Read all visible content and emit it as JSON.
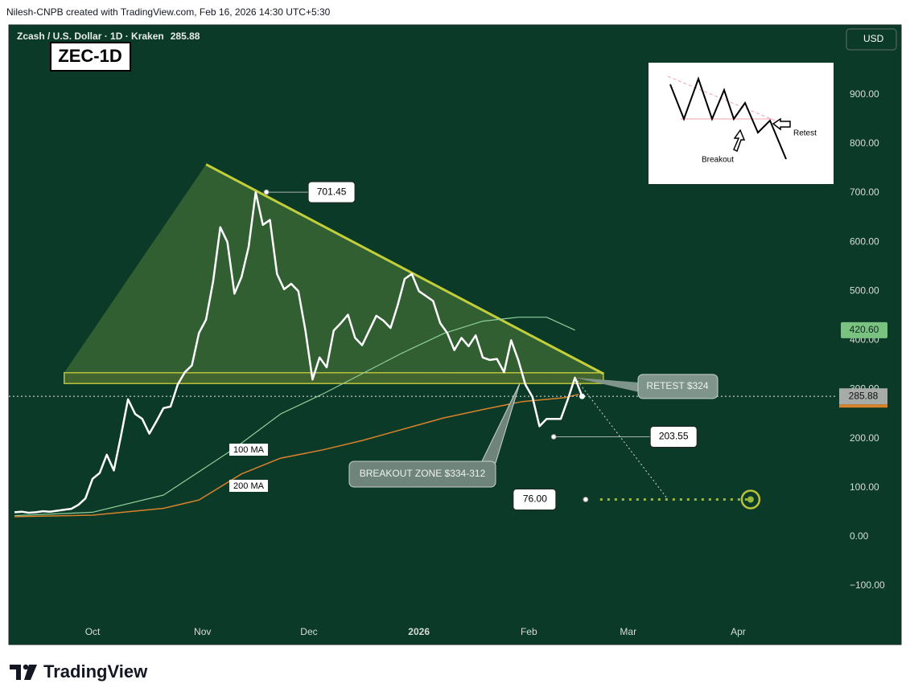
{
  "header": {
    "credit": "Nilesh-CNPB created with TradingView.com, Feb 16, 2026 14:30 UTC+5:30"
  },
  "footer": {
    "brand": "TradingView"
  },
  "inset": {
    "retest": "Retest",
    "breakout": "Breakout"
  },
  "chart_data": {
    "type": "line",
    "title": "Zcash / U.S. Dollar · 1D · Kraken",
    "badge": "ZEC-1D",
    "currency": "USD",
    "grid": false,
    "xlim": [
      -23.6,
      209.8
    ],
    "ylim": [
      -167,
      1042
    ],
    "xticks": [
      {
        "value": 0,
        "label": "Oct"
      },
      {
        "value": 31,
        "label": "Nov"
      },
      {
        "value": 61,
        "label": "Dec"
      },
      {
        "value": 92,
        "label": "2026"
      },
      {
        "value": 123,
        "label": "Feb"
      },
      {
        "value": 151,
        "label": "Mar"
      },
      {
        "value": 182,
        "label": "Apr"
      }
    ],
    "yticks": [
      {
        "value": 900,
        "label": "900.00"
      },
      {
        "value": 800,
        "label": "800.00"
      },
      {
        "value": 700,
        "label": "700.00"
      },
      {
        "value": 600,
        "label": "600.00"
      },
      {
        "value": 500,
        "label": "500.00"
      },
      {
        "value": 400,
        "label": "400.00"
      },
      {
        "value": 300,
        "label": "300.00"
      },
      {
        "value": 200,
        "label": "200.00"
      },
      {
        "value": 100,
        "label": "100.00"
      },
      {
        "value": 0,
        "label": "0.00"
      },
      {
        "value": -100,
        "label": "−100.00"
      }
    ],
    "series": [
      {
        "color": "#ffffff",
        "x": [
          -22,
          -20,
          -18,
          -16,
          -14,
          -12,
          -10,
          -8,
          -6,
          -4,
          -2,
          0,
          2,
          4,
          6,
          8,
          10,
          12,
          14,
          16,
          18,
          20,
          22,
          24,
          26,
          28,
          30,
          32,
          34,
          36,
          38,
          40,
          42,
          44,
          46,
          48,
          50,
          52,
          54,
          56,
          58,
          60,
          62,
          64,
          66,
          68,
          70,
          72,
          74,
          76,
          78,
          80,
          82,
          84,
          86,
          88,
          90,
          92,
          94,
          96,
          98,
          100,
          102,
          104,
          106,
          108,
          110,
          112,
          114,
          116,
          118,
          120,
          122,
          124,
          126,
          128,
          130,
          132,
          134,
          136,
          138
        ],
        "values": [
          50,
          51,
          49,
          50,
          52,
          51,
          53,
          55,
          57,
          65,
          78,
          118,
          130,
          167,
          135,
          205,
          280,
          250,
          240,
          210,
          235,
          262,
          265,
          310,
          335,
          349,
          415,
          442,
          520,
          630,
          600,
          495,
          529,
          590,
          701.45,
          635,
          645,
          535,
          504,
          515,
          500,
          420,
          320,
          365,
          345,
          420,
          435,
          452,
          405,
          390,
          420,
          450,
          440,
          425,
          471,
          525,
          535,
          500,
          490,
          480,
          435,
          415,
          380,
          405,
          388,
          410,
          365,
          360,
          362,
          335,
          400,
          360,
          310,
          285,
          225,
          240,
          240,
          240,
          280,
          324,
          285.88
        ]
      },
      {
        "name": "100 MA",
        "color": "#8fcf9a",
        "x": [
          -22,
          0,
          20,
          40,
          53,
          65,
          76,
          87,
          99,
          110,
          120,
          128,
          136
        ],
        "values": [
          43,
          50,
          85,
          180,
          250,
          291,
          332,
          373,
          414,
          439,
          447,
          447,
          420.6
        ],
        "value_labels": [
          null,
          null,
          null,
          null,
          null,
          null,
          null,
          null,
          null,
          null,
          null,
          null,
          "420.60"
        ]
      },
      {
        "name": "200 MA",
        "color": "#d9822b",
        "x": [
          -22,
          0,
          20,
          30,
          42,
          53,
          65,
          76,
          87,
          99,
          110,
          121,
          133,
          137
        ],
        "values": [
          41,
          44,
          58,
          75,
          128,
          160,
          177,
          196,
          218,
          242,
          259,
          275,
          283,
          290
        ]
      }
    ],
    "triangle": {
      "x": [
        -8,
        32,
        144
      ],
      "values": [
        334,
        758,
        332
      ]
    },
    "breakout_zone": {
      "x": [
        -8,
        144
      ],
      "values": [
        312,
        334
      ],
      "label": "BREAKOUT ZONE $334-312"
    },
    "retest": {
      "x": 136,
      "value": 324,
      "label": "RETEST $324"
    },
    "projection": {
      "x": [
        136,
        162
      ],
      "values": [
        324,
        78
      ]
    },
    "price_labels": [
      {
        "x": 49,
        "value": 701.45
      },
      {
        "x": 130,
        "value": 203.55
      }
    ],
    "target": {
      "x": [
        139,
        185.5
      ],
      "value": 76,
      "label": "76.00"
    }
  }
}
